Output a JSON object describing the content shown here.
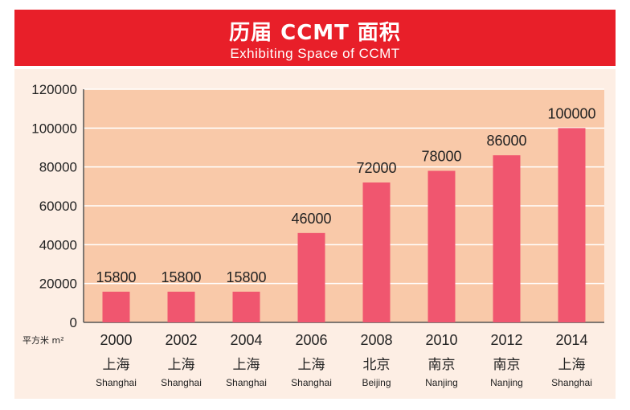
{
  "header": {
    "title": "历届 CCMT 面积",
    "subtitle": "Exhibiting Space of CCMT"
  },
  "chart_data": {
    "type": "bar",
    "title": "历届 CCMT 面积",
    "subtitle": "Exhibiting Space of CCMT",
    "ylabel": "平方米 m²",
    "ylim": [
      0,
      120000
    ],
    "yticks": [
      0,
      20000,
      40000,
      60000,
      80000,
      100000,
      120000
    ],
    "grid": true,
    "categories": [
      "2000",
      "2002",
      "2004",
      "2006",
      "2008",
      "2010",
      "2012",
      "2014"
    ],
    "cities_cn": [
      "上海",
      "上海",
      "上海",
      "上海",
      "北京",
      "南京",
      "南京",
      "上海"
    ],
    "cities_en": [
      "Shanghai",
      "Shanghai",
      "Shanghai",
      "Shanghai",
      "Beijing",
      "Nanjing",
      "Nanjing",
      "Shanghai"
    ],
    "values": [
      15800,
      15800,
      15800,
      46000,
      72000,
      78000,
      86000,
      100000
    ],
    "colors": {
      "bar": "#f0566f",
      "plot_bg": "#f9c9a9",
      "grid": "#ffffff",
      "axis": "#555555",
      "text": "#222222"
    }
  }
}
